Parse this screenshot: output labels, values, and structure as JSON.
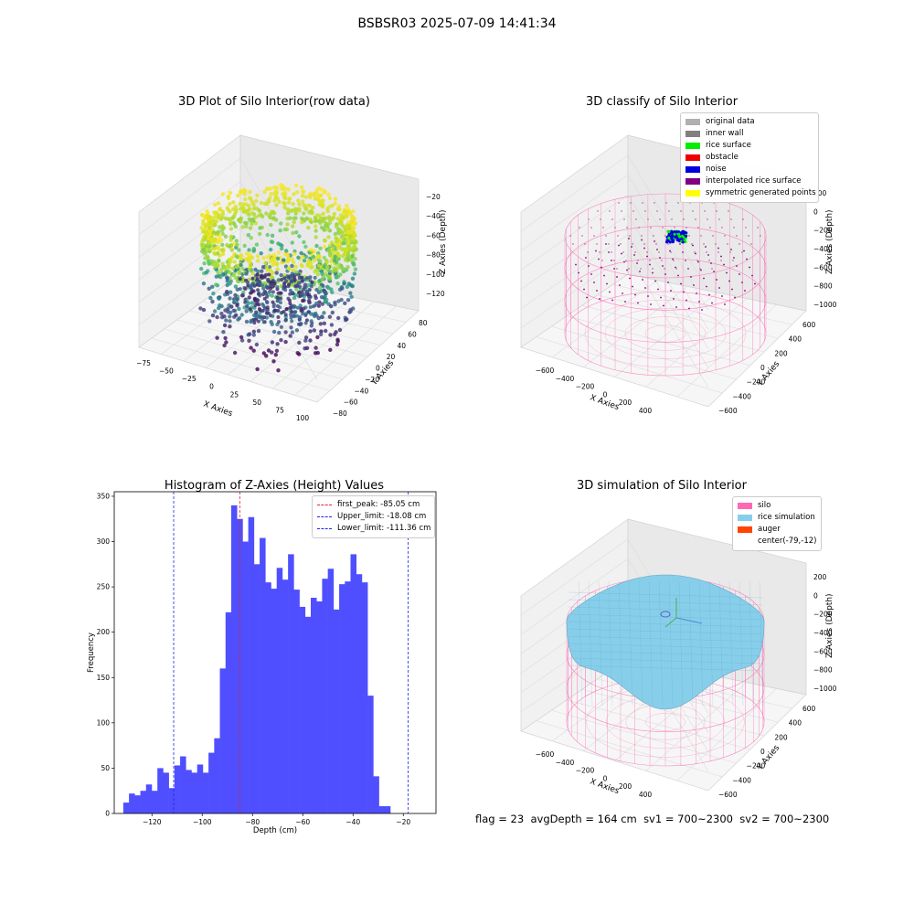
{
  "suptitle": "BSBSR03 2025-07-09 14:41:34",
  "chart_data": [
    {
      "type": "scatter",
      "title": "3D Plot of Silo Interior(row data)",
      "xlabel": "X Axies",
      "ylabel": "Y Axies",
      "zlabel": "Z Axies (Depth)",
      "x_ticks": [
        "−75",
        "−50",
        "−25",
        "0",
        "25",
        "50",
        "75",
        "100"
      ],
      "y_ticks": [
        "−80",
        "−60",
        "−40",
        "−20",
        "0",
        "20",
        "40",
        "60",
        "80"
      ],
      "z_ticks": [
        "−20",
        "−40",
        "−60",
        "−80",
        "−100",
        "−120"
      ],
      "xlim": [
        -80,
        100
      ],
      "ylim": [
        -85,
        85
      ],
      "zlim": [
        -135,
        -15
      ],
      "colormap": "viridis"
    },
    {
      "type": "scatter",
      "title": "3D classify of Silo Interior",
      "xlabel": "X Axies",
      "ylabel": "Y Axies",
      "zlabel": "Z Axies (Depth)",
      "x_ticks": [
        "−600",
        "−400",
        "−200",
        "0",
        "200",
        "400"
      ],
      "y_ticks": [
        "−600",
        "−400",
        "−200",
        "0",
        "200",
        "400",
        "600"
      ],
      "z_ticks": [
        "200",
        "0",
        "−200",
        "−400",
        "−600",
        "−800",
        "−1000"
      ],
      "legend": [
        {
          "label": "original data",
          "color": "#b0b0b0"
        },
        {
          "label": "inner wall",
          "color": "#808080"
        },
        {
          "label": "rice surface",
          "color": "#00ee00"
        },
        {
          "label": "obstacle",
          "color": "#ee0000"
        },
        {
          "label": "noise",
          "color": "#0000dd"
        },
        {
          "label": "interpolated rice surface",
          "color": "#800080"
        },
        {
          "label": "symmetric generated points",
          "color": "#ffff00"
        }
      ]
    },
    {
      "type": "bar",
      "title": "Histogram of Z-Axies (Height) Values",
      "xlabel": "Depth (cm)",
      "ylabel": "Frequency",
      "xlim": [
        -135,
        -7
      ],
      "ylim": [
        0,
        355
      ],
      "x_ticks": [
        -120,
        -100,
        -80,
        -60,
        -40,
        -20
      ],
      "x_tick_labels": [
        "−120",
        "−100",
        "−80",
        "−60",
        "−40",
        "−20"
      ],
      "y_ticks": [
        0,
        50,
        100,
        150,
        200,
        250,
        300,
        350
      ],
      "bin_start": -131.4,
      "bin_width": 2.26,
      "values": [
        12,
        22,
        20,
        25,
        32,
        25,
        50,
        45,
        28,
        53,
        63,
        48,
        45,
        54,
        45,
        67,
        83,
        160,
        222,
        340,
        325,
        300,
        327,
        275,
        304,
        255,
        248,
        271,
        258,
        286,
        247,
        228,
        217,
        238,
        234,
        259,
        270,
        225,
        253,
        256,
        286,
        264,
        255,
        130,
        41,
        8,
        8
      ],
      "bar_color": "#4f4fff",
      "vlines": [
        {
          "label": "first_peak: -85.05 cm",
          "x": -85.05,
          "color": "#ee2222"
        },
        {
          "label": "Upper_limit: -18.08 cm",
          "x": -18.08,
          "color": "#2222ee"
        },
        {
          "label": "Lower_limit: -111.36 cm",
          "x": -111.36,
          "color": "#2222ee"
        }
      ],
      "legend_position": "upper right"
    },
    {
      "type": "area",
      "title": "3D simulation of Silo Interior",
      "xlabel": "X Axies",
      "ylabel": "Y Axies",
      "zlabel": "Z Axies (Depth)",
      "x_ticks": [
        "−600",
        "−400",
        "−200",
        "0",
        "200",
        "400"
      ],
      "y_ticks": [
        "−600",
        "−400",
        "−200",
        "0",
        "200",
        "400",
        "600"
      ],
      "z_ticks": [
        "200",
        "0",
        "−200",
        "−400",
        "−600",
        "−800",
        "−1000"
      ],
      "legend": [
        {
          "label": "silo",
          "color": "#ff69b4"
        },
        {
          "label": "rice simulation",
          "color": "#87ceeb"
        },
        {
          "label": "auger",
          "color": "#ff4500"
        },
        {
          "label": "center(-79,-12)",
          "color": "#ffffff"
        }
      ]
    }
  ],
  "footer": {
    "flag": "flag = 23",
    "avg_depth": "avgDepth = 164 cm",
    "sv1": "sv1 = 700~2300",
    "sv2": "sv2 = 700~2300"
  }
}
